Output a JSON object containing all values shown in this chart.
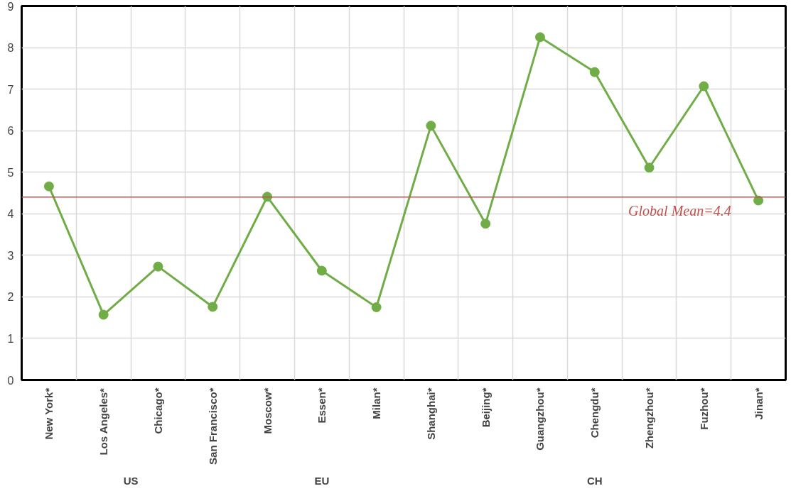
{
  "chart_data": {
    "type": "line",
    "categories": [
      "New York*",
      "Los Angeles*",
      "Chicago*",
      "San Francisco*",
      "Moscow*",
      "Essen*",
      "Milan*",
      "Shanghai*",
      "Beijing*",
      "Guangzhou*",
      "Chengdu*",
      "Zhengzhou*",
      "Fuzhou*",
      "Jinan*"
    ],
    "series": [
      {
        "color": "#70ad47",
        "values": [
          4.66,
          1.57,
          2.73,
          1.76,
          4.41,
          2.63,
          1.75,
          6.12,
          3.76,
          8.25,
          7.41,
          5.11,
          7.07,
          4.32
        ]
      }
    ],
    "ylim": [
      0,
      9
    ],
    "yticks": [
      0,
      1,
      2,
      3,
      4,
      5,
      6,
      7,
      8,
      9
    ],
    "grid": true,
    "marker": "circle",
    "line_style": "solid",
    "ref_lines": [
      {
        "axis": "y",
        "value": 4.4,
        "label": "Global Mean=4.4",
        "color": "#c0504d"
      }
    ],
    "annotations": [
      "US",
      "EU",
      "CH"
    ]
  }
}
